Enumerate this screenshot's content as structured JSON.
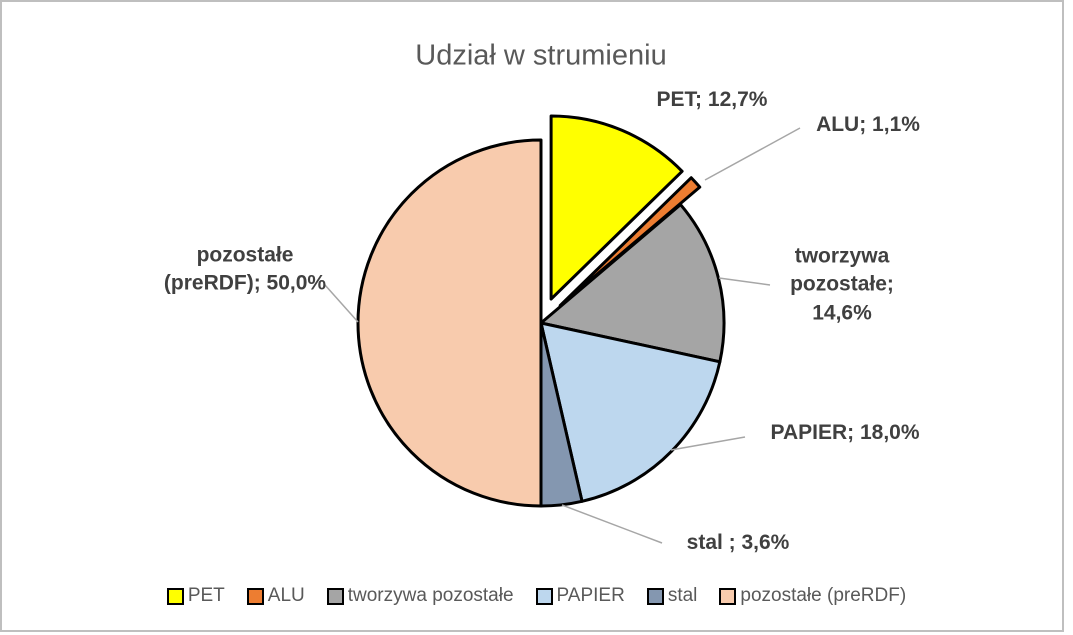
{
  "chart_data": {
    "type": "pie",
    "title": "Udział w strumieniu",
    "categories": [
      "PET",
      "ALU",
      "tworzywa pozostałe",
      "PAPIER",
      "stal",
      "pozostałe (preRDF)"
    ],
    "values": [
      12.7,
      1.1,
      14.6,
      18.0,
      3.6,
      50.0
    ],
    "value_labels": [
      "PET; 12,7%",
      "ALU; 1,1%",
      "tworzywa pozostałe; 14,6%",
      "PAPIER; 18,0%",
      "stal ; 3,6%",
      "pozostałe (preRDF); 50,0%"
    ],
    "colors": [
      "#ffff00",
      "#ed7d31",
      "#a5a5a5",
      "#bdd7ee",
      "#8497b0",
      "#f8cbad"
    ],
    "legend": "bottom"
  }
}
